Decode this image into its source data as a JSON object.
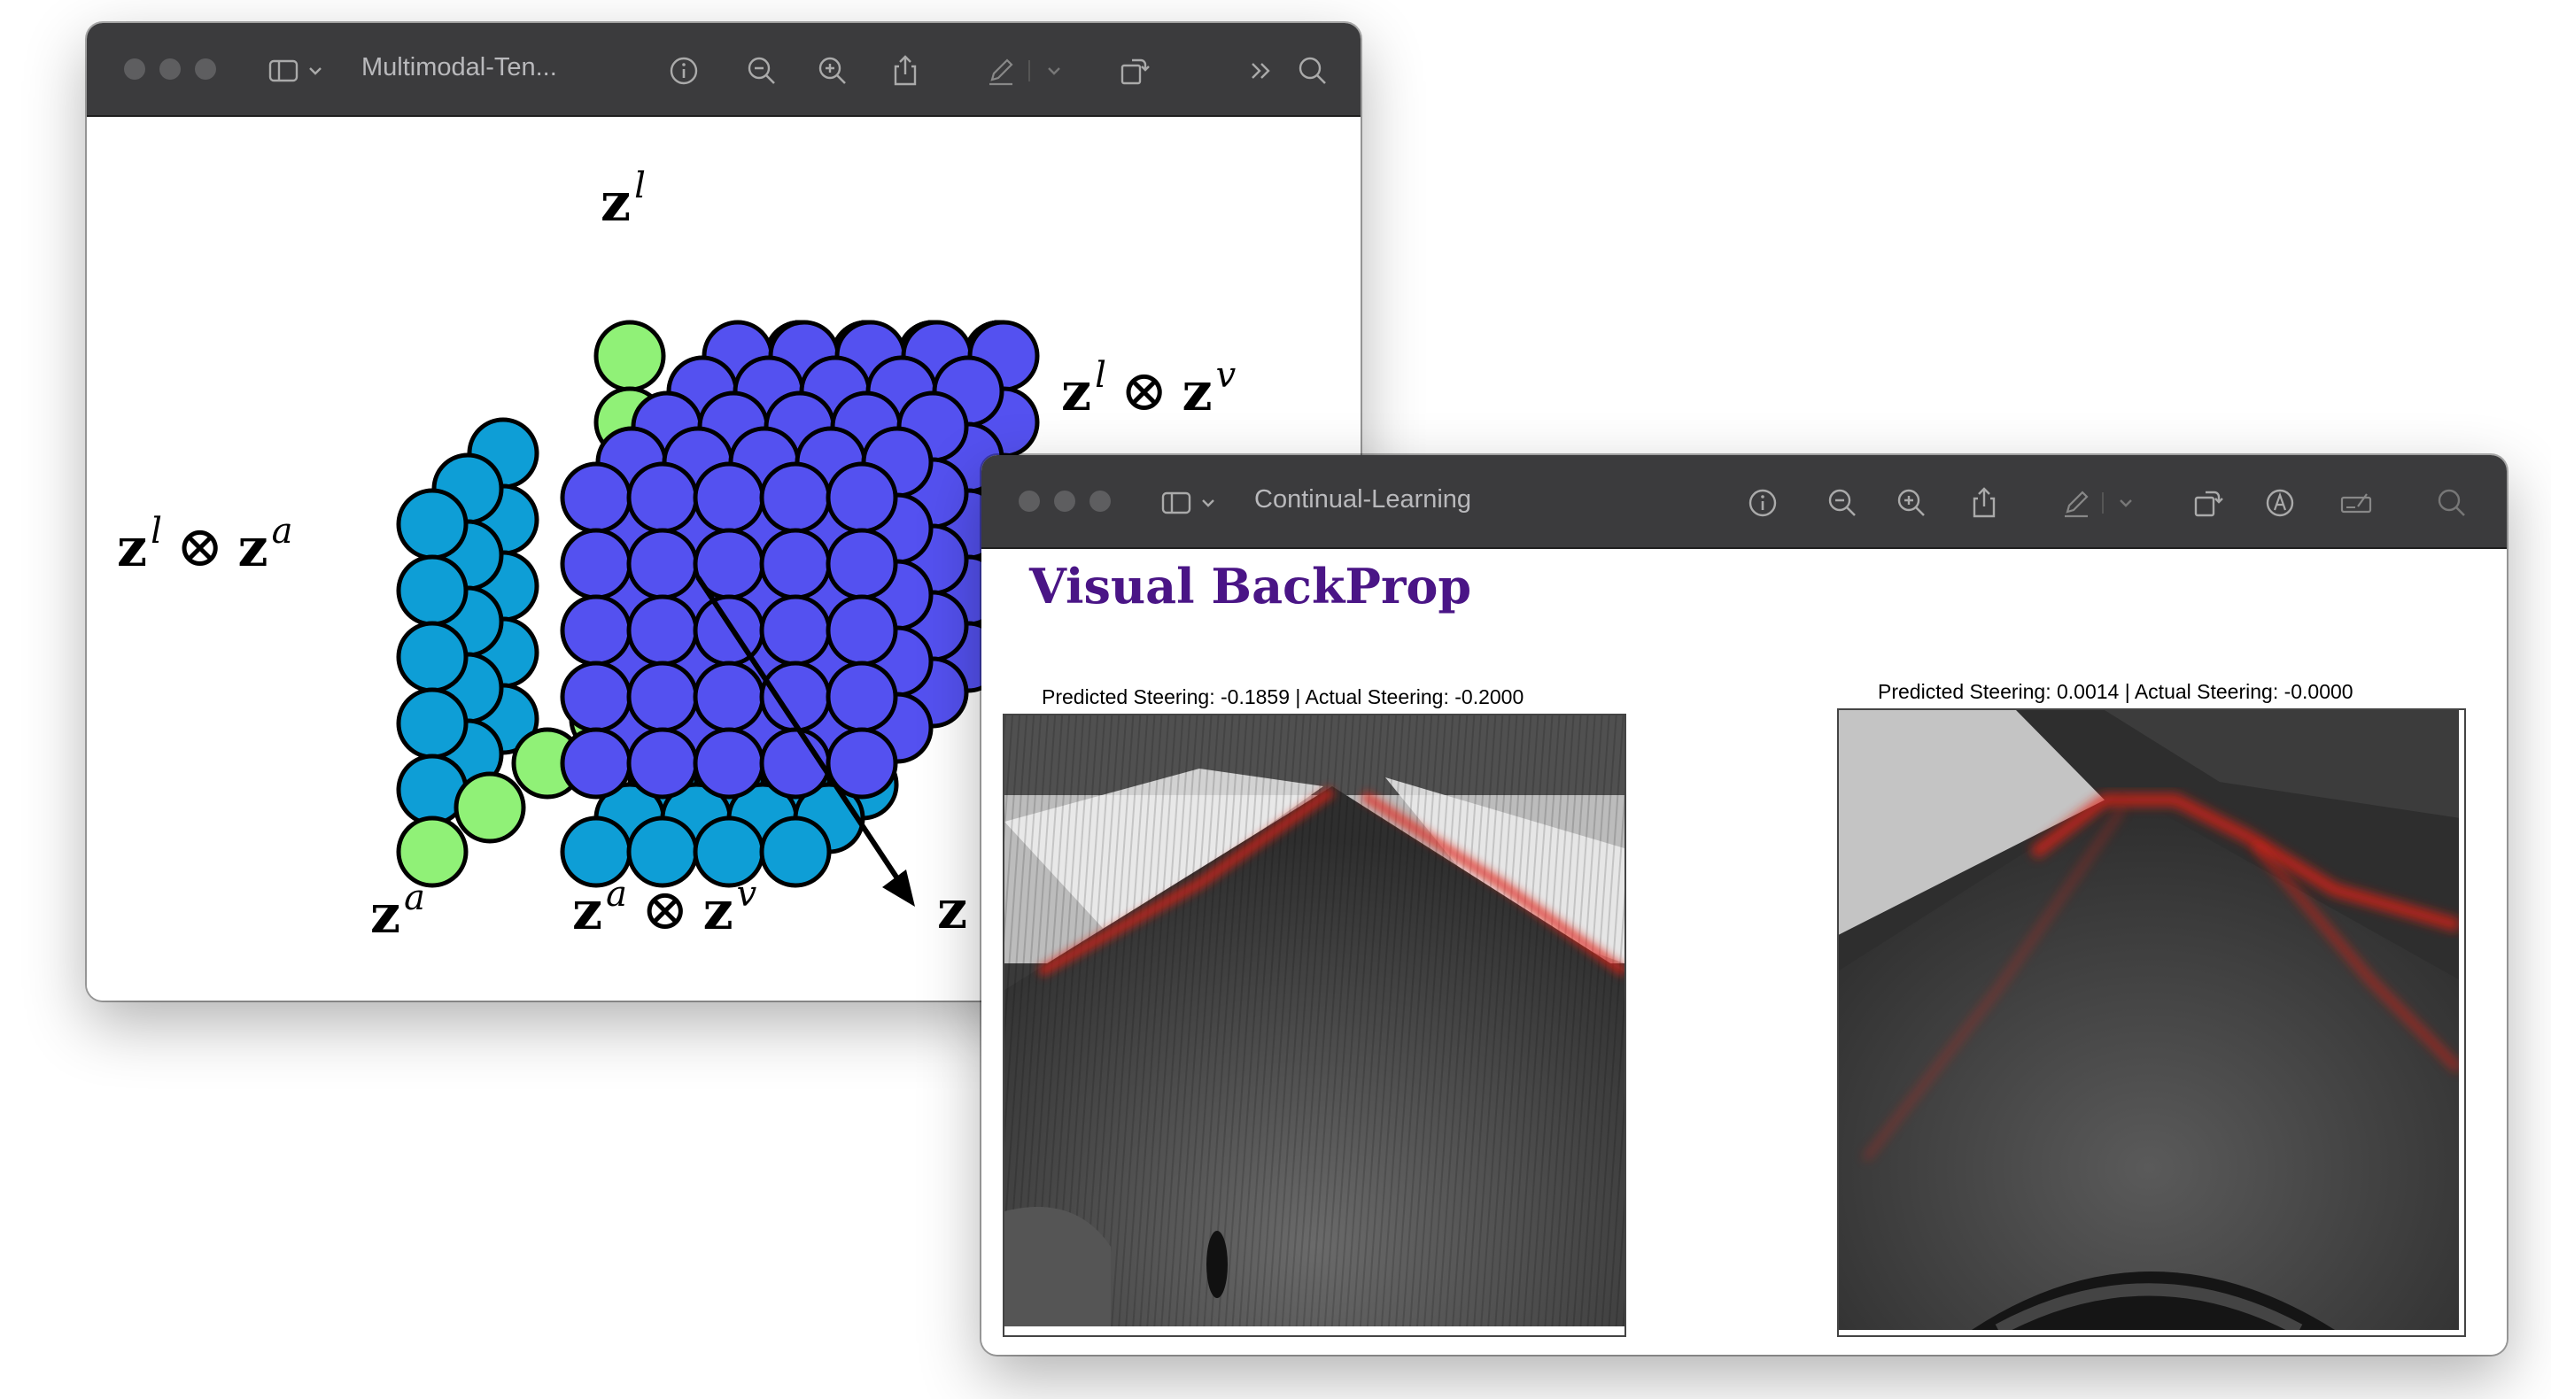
{
  "windows": [
    {
      "title": "Multimodal-Ten...",
      "toolbar_icons": [
        "sidebar-icon",
        "chevron-down-icon",
        "info-icon",
        "zoom-out-icon",
        "zoom-in-icon",
        "share-icon",
        "markup-pen-icon",
        "chevron-down-icon",
        "rotate-icon",
        "more-chevrons-icon",
        "search-icon"
      ],
      "figure": {
        "label_top": {
          "base": "z",
          "sup": "l"
        },
        "label_right": {
          "a": "z",
          "a_sup": "l",
          "op": "⊗",
          "b": "z",
          "b_sup": "v"
        },
        "label_left": {
          "a": "z",
          "a_sup": "l",
          "op": "⊗",
          "b": "z",
          "b_sup": "a"
        },
        "label_bottom_left": {
          "base": "z",
          "sup": "a"
        },
        "label_bottom_mid": {
          "a": "z",
          "a_sup": "a",
          "op": "⊗",
          "b": "z",
          "b_sup": "v"
        },
        "label_bottom_right": {
          "base": "z"
        },
        "colors": {
          "green": "#90f177",
          "cyan": "#0e9ed6",
          "purple": "#5451f0"
        }
      }
    },
    {
      "title": "Continual-Learning",
      "toolbar_icons": [
        "sidebar-icon",
        "chevron-down-icon",
        "info-icon",
        "zoom-out-icon",
        "zoom-in-icon",
        "share-icon",
        "markup-pen-icon",
        "chevron-down-icon",
        "rotate-icon",
        "annotate-icon",
        "form-fill-icon",
        "search-icon"
      ],
      "heading": "Visual BackProp",
      "panels": [
        {
          "caption": "Predicted Steering: -0.1859 | Actual Steering: -0.2000"
        },
        {
          "caption": "Predicted Steering: 0.0014 | Actual Steering: -0.0000"
        }
      ],
      "colors": {
        "heading": "#4a1586",
        "saliency": "#e02018"
      }
    }
  ]
}
